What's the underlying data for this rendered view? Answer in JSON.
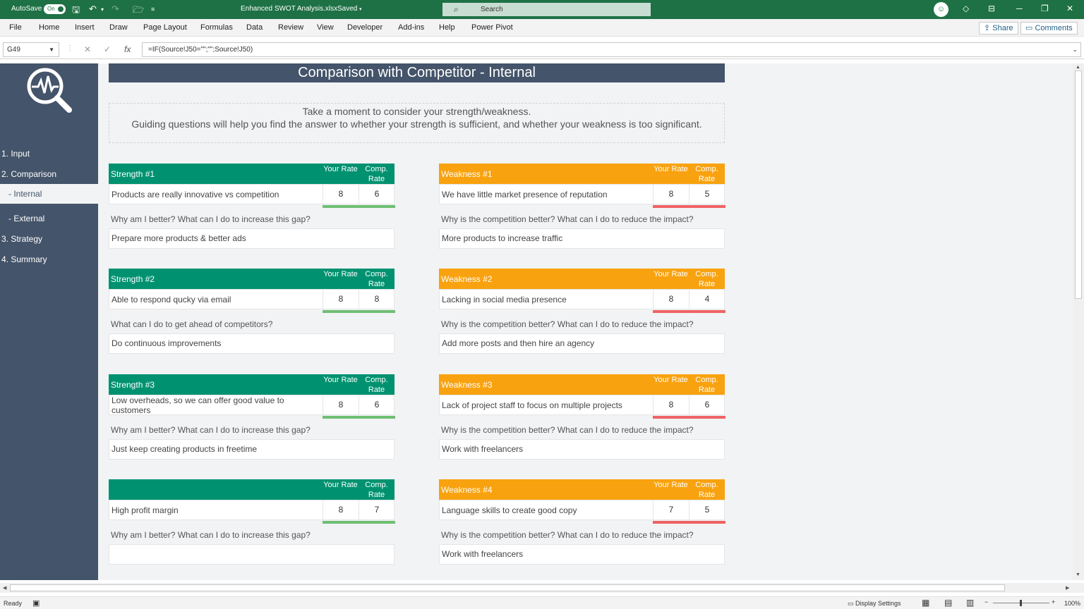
{
  "titlebar": {
    "autosave_label": "AutoSave",
    "autosave_state": "On",
    "filename": "Enhanced SWOT Analysis.xlsx",
    "save_state": "Saved",
    "search_placeholder": "Search"
  },
  "menu": [
    "File",
    "Home",
    "Insert",
    "Draw",
    "Page Layout",
    "Formulas",
    "Data",
    "Review",
    "View",
    "Developer",
    "Add-ins",
    "Help",
    "Power Pivot"
  ],
  "ribbon_buttons": {
    "share": "Share",
    "comments": "Comments"
  },
  "formula_bar": {
    "name_box": "G49",
    "formula": "=IF(Source!J50=\"\";\"\";Source!J50)"
  },
  "sidebar": {
    "items": [
      "1. Input",
      "2. Comparison",
      "- Internal",
      "- External",
      "3. Strategy",
      "4. Summary"
    ]
  },
  "page": {
    "title": "Comparison with Competitor - Internal",
    "intro": "Take a moment to consider your strength/weakness.\nGuiding questions will help you find the answer to whether your strength is sufficient, and whether your weakness is too significant.",
    "col_your": "Your Rate",
    "col_comp": "Comp. Rate"
  },
  "strengths": [
    {
      "label": "Strength #1",
      "text": "Products are really innovative vs competition",
      "your": "8",
      "comp": "6",
      "question": "Why am I better? What can I do to increase this gap?",
      "answer": "Prepare more products & better ads"
    },
    {
      "label": "Strength #2",
      "text": "Able to respond qucky via email",
      "your": "8",
      "comp": "8",
      "question": "What can I do to get ahead of competitors?",
      "answer": "Do continuous improvements"
    },
    {
      "label": "Strength #3",
      "text": "Low overheads, so we can offer good value to customers",
      "your": "8",
      "comp": "6",
      "question": "Why am I better? What can I do to increase this gap?",
      "answer": "Just keep creating products in freetime"
    },
    {
      "label": "",
      "text": "High profit margin",
      "your": "8",
      "comp": "7",
      "question": "Why am I better? What can I do to increase this gap?",
      "answer": ""
    }
  ],
  "weaknesses": [
    {
      "label": "Weakness #1",
      "text": "We have little market presence of reputation",
      "your": "8",
      "comp": "5",
      "question": "Why is the competition better? What can I do to reduce the impact?",
      "answer": "More products to increase traffic"
    },
    {
      "label": "Weakness #2",
      "text": "Lacking in social media presence",
      "your": "8",
      "comp": "4",
      "question": "Why is the competition better? What can I do to reduce the impact?",
      "answer": "Add more posts and then hire an agency"
    },
    {
      "label": "Weakness #3",
      "text": "Lack of project staff to focus on multiple projects",
      "your": "8",
      "comp": "6",
      "question": "Why is the competition better? What can I do to reduce the impact?",
      "answer": "Work with freelancers"
    },
    {
      "label": "Weakness #4",
      "text": "Language skills to create good copy",
      "your": "7",
      "comp": "5",
      "question": "Why is the competition better? What can I do to reduce the impact?",
      "answer": "Work with freelancers"
    }
  ],
  "status": {
    "ready": "Ready",
    "display_settings": "Display Settings",
    "zoom": "100%"
  },
  "colors": {
    "excel_green": "#1e7145",
    "slate": "#44546a",
    "strength_green": "#009270",
    "weakness_orange": "#f9a20f",
    "bar_green": "#70bf73",
    "bar_red": "#ef6364"
  }
}
